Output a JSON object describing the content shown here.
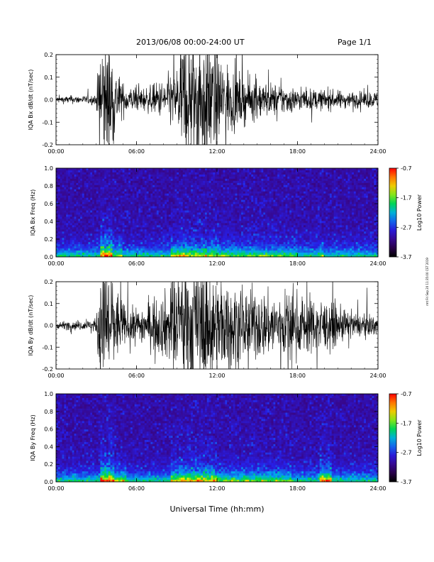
{
  "header": {
    "title": "2013/06/08  00:00-24:00 UT",
    "page": "Page 1/1"
  },
  "footer": {
    "xlabel": "Universal Time (hh:mm)"
  },
  "side_note": "rmt Fri Sep 20 11:35:00 CST 2019",
  "colors": {
    "spec_bg": "#1a0a2a",
    "trace": "#000000"
  },
  "chart_data": [
    {
      "type": "line",
      "id": "bx_ts",
      "ylabel": "IQA Bx dB/dt (nT/sec)",
      "ylim": [
        -0.2,
        0.2
      ],
      "yticks": [
        "0.2",
        "0.1",
        "0.0",
        "-0.1",
        "-0.2"
      ],
      "xticks": [
        "00:00",
        "06:00",
        "12:00",
        "18:00",
        "24:00"
      ],
      "xlim_hours": [
        0,
        24
      ],
      "envelope": {
        "hours": [
          0,
          1,
          2,
          3,
          3.3,
          3.6,
          4.0,
          4.5,
          5.0,
          5.5,
          6.0,
          7.0,
          8.0,
          9.0,
          9.5,
          10.0,
          10.5,
          11.0,
          11.5,
          12.0,
          13.0,
          14.0,
          15.0,
          16.0,
          17.0,
          18.0,
          20.0,
          22.0,
          24.0
        ],
        "amplitude": [
          0.01,
          0.012,
          0.012,
          0.015,
          0.2,
          0.2,
          0.2,
          0.09,
          0.05,
          0.04,
          0.035,
          0.04,
          0.06,
          0.1,
          0.2,
          0.2,
          0.2,
          0.2,
          0.2,
          0.15,
          0.1,
          0.07,
          0.06,
          0.05,
          0.045,
          0.035,
          0.03,
          0.025,
          0.025
        ]
      }
    },
    {
      "type": "heatmap",
      "id": "bx_spec",
      "ylabel": "IQA Bx Freq (Hz)",
      "ylim": [
        0.0,
        1.0
      ],
      "yticks": [
        "1.0",
        "0.8",
        "0.6",
        "0.4",
        "0.2",
        "0.0"
      ],
      "xticks": [
        "00:00",
        "06:00",
        "12:00",
        "18:00",
        "24:00"
      ],
      "xlim_hours": [
        0,
        24
      ],
      "colorbar": {
        "label": "Log10 Power",
        "min": -3.7,
        "max": -0.7,
        "ticks": [
          "-0.7",
          "-1.7",
          "-2.7",
          "-3.7"
        ]
      }
    },
    {
      "type": "line",
      "id": "by_ts",
      "ylabel": "IQA By dB/dt (nT/sec)",
      "ylim": [
        -0.2,
        0.2
      ],
      "yticks": [
        "0.2",
        "0.1",
        "0.0",
        "-0.1",
        "-0.2"
      ],
      "xticks": [
        "00:00",
        "06:00",
        "12:00",
        "18:00",
        "24:00"
      ],
      "xlim_hours": [
        0,
        24
      ],
      "envelope": {
        "hours": [
          0,
          1,
          2,
          3,
          3.3,
          3.6,
          4.0,
          4.5,
          5.0,
          5.5,
          6.0,
          7.0,
          8.0,
          9.0,
          9.5,
          10.0,
          10.5,
          11.0,
          11.5,
          12.0,
          13.0,
          14.0,
          15.0,
          16.0,
          17.0,
          18.0,
          19.0,
          20.0,
          22.0,
          24.0
        ],
        "amplitude": [
          0.01,
          0.015,
          0.015,
          0.02,
          0.2,
          0.2,
          0.2,
          0.12,
          0.07,
          0.05,
          0.06,
          0.07,
          0.1,
          0.15,
          0.2,
          0.2,
          0.2,
          0.2,
          0.18,
          0.16,
          0.13,
          0.12,
          0.11,
          0.1,
          0.11,
          0.1,
          0.09,
          0.08,
          0.04,
          0.03
        ]
      }
    },
    {
      "type": "heatmap",
      "id": "by_spec",
      "ylabel": "IQA By Freq (Hz)",
      "ylim": [
        0.0,
        1.0
      ],
      "yticks": [
        "1.0",
        "0.8",
        "0.6",
        "0.4",
        "0.2",
        "0.0"
      ],
      "xticks": [
        "00:00",
        "06:00",
        "12:00",
        "18:00",
        "24:00"
      ],
      "xlim_hours": [
        0,
        24
      ],
      "colorbar": {
        "label": "Log10 Power",
        "min": -3.7,
        "max": -0.7,
        "ticks": [
          "-0.7",
          "-1.7",
          "-2.7",
          "-3.7"
        ]
      }
    }
  ]
}
